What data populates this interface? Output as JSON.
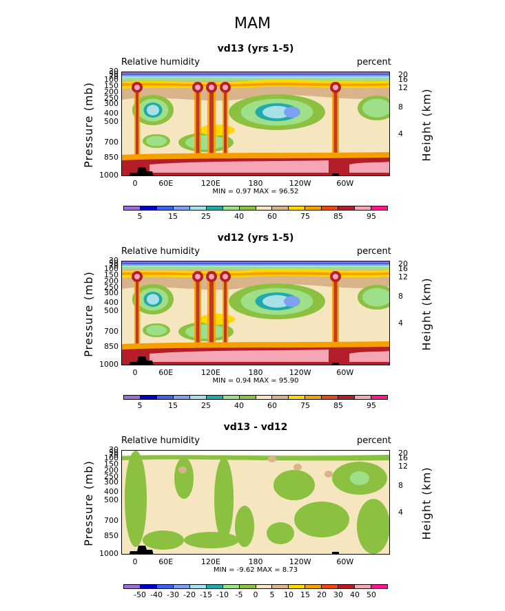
{
  "season": "MAM",
  "variable_label": "Relative humidity",
  "units_label": "percent",
  "y_axis_label": "Pressure (mb)",
  "right_axis_label": "Height (km)",
  "y_ticks": [
    "30",
    "50",
    "70",
    "100",
    "150",
    "200",
    "250",
    "300",
    "400",
    "500",
    "700",
    "850",
    "1000"
  ],
  "height_ticks": [
    "20",
    "16",
    "12",
    "8",
    "4"
  ],
  "x_ticks": [
    "0",
    "60E",
    "120E",
    "180",
    "120W",
    "60W"
  ],
  "palette": {
    "abs": [
      "#9a6fd6",
      "#0000c8",
      "#3c64e6",
      "#7ea0f0",
      "#a8e0e8",
      "#22aaaa",
      "#9ee08a",
      "#8cc040",
      "#f5e6c0",
      "#d9b48a",
      "#ffd700",
      "#f5a000",
      "#e84a10",
      "#b41e28",
      "#f4a6b4",
      "#ff1493"
    ],
    "diff": [
      "#9a6fd6",
      "#0000c8",
      "#3c64e6",
      "#7ea0f0",
      "#a8e0e8",
      "#22aaaa",
      "#9ee08a",
      "#8cc040",
      "#f5e6c0",
      "#d9b48a",
      "#ffd700",
      "#f5a000",
      "#e84a10",
      "#b41e28",
      "#f4a6b4",
      "#ff1493"
    ]
  },
  "panels": [
    {
      "title": "vd13 (yrs 1-5)",
      "stats_text": "MIN =    0.97  MAX =    96.52",
      "colorbar_labels": [
        "5",
        "15",
        "25",
        "40",
        "60",
        "75",
        "85",
        "95"
      ]
    },
    {
      "title": "vd12 (yrs 1-5)",
      "stats_text": "MIN =    0.94  MAX =    95.90",
      "colorbar_labels": [
        "5",
        "15",
        "25",
        "40",
        "60",
        "75",
        "85",
        "95"
      ]
    },
    {
      "title": "vd13 - vd12",
      "stats_text": "MIN =   -9.62  MAX =    8.73",
      "colorbar_labels": [
        "-50",
        "-40",
        "-30",
        "-20",
        "-15",
        "-10",
        "-5",
        "0",
        "5",
        "10",
        "15",
        "20",
        "30",
        "40",
        "50"
      ]
    }
  ],
  "chart_data": [
    {
      "type": "heatmap",
      "title": "vd13 (yrs 1-5)",
      "field": "Relative humidity",
      "units": "percent",
      "x_axis": "longitude",
      "x_tick_labels": [
        "0",
        "60E",
        "120E",
        "180",
        "120W",
        "60W"
      ],
      "ylabel": "Pressure (mb)",
      "y_levels": [
        30,
        50,
        70,
        100,
        150,
        200,
        250,
        300,
        400,
        500,
        700,
        850,
        1000
      ],
      "ylim": [
        1000,
        30
      ],
      "y2label": "Height (km)",
      "y2_ticks": [
        20,
        16,
        12,
        8,
        4
      ],
      "contour_levels": [
        5,
        10,
        15,
        20,
        25,
        30,
        40,
        50,
        60,
        70,
        75,
        80,
        85,
        90,
        95
      ],
      "min": 0.97,
      "max": 96.52
    },
    {
      "type": "heatmap",
      "title": "vd12 (yrs 1-5)",
      "field": "Relative humidity",
      "units": "percent",
      "x_axis": "longitude",
      "x_tick_labels": [
        "0",
        "60E",
        "120E",
        "180",
        "120W",
        "60W"
      ],
      "ylabel": "Pressure (mb)",
      "y_levels": [
        30,
        50,
        70,
        100,
        150,
        200,
        250,
        300,
        400,
        500,
        700,
        850,
        1000
      ],
      "ylim": [
        1000,
        30
      ],
      "y2label": "Height (km)",
      "y2_ticks": [
        20,
        16,
        12,
        8,
        4
      ],
      "contour_levels": [
        5,
        10,
        15,
        20,
        25,
        30,
        40,
        50,
        60,
        70,
        75,
        80,
        85,
        90,
        95
      ],
      "min": 0.94,
      "max": 95.9
    },
    {
      "type": "heatmap",
      "title": "vd13 - vd12",
      "field": "Relative humidity",
      "units": "percent",
      "x_axis": "longitude",
      "x_tick_labels": [
        "0",
        "60E",
        "120E",
        "180",
        "120W",
        "60W"
      ],
      "ylabel": "Pressure (mb)",
      "y_levels": [
        30,
        50,
        70,
        100,
        150,
        200,
        250,
        300,
        400,
        500,
        700,
        850,
        1000
      ],
      "ylim": [
        1000,
        30
      ],
      "y2label": "Height (km)",
      "y2_ticks": [
        20,
        16,
        12,
        8,
        4
      ],
      "contour_levels": [
        -50,
        -40,
        -30,
        -20,
        -15,
        -10,
        -5,
        0,
        5,
        10,
        15,
        20,
        30,
        40,
        50
      ],
      "min": -9.62,
      "max": 8.73
    }
  ]
}
